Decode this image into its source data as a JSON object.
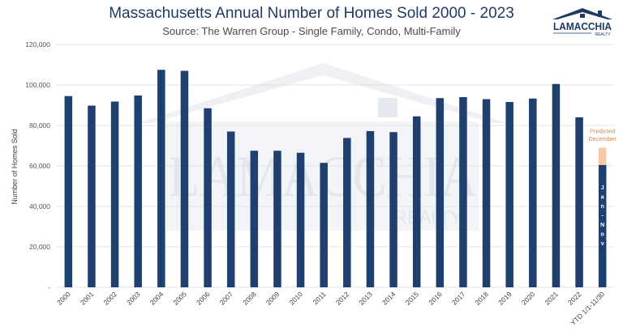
{
  "header": {
    "title": "Massachusetts Annual Number of Homes Sold 2000 - 2023",
    "subtitle": "Source: The Warren Group - Single Family, Condo, Multi-Family"
  },
  "logo": {
    "text": "LAMACCHIA",
    "subtext": "REALTY",
    "color": "#1f3b64"
  },
  "watermark": {
    "text": "LAMACCHIA",
    "subtext": "REALTY"
  },
  "chart_data": {
    "type": "bar",
    "title": "Massachusetts Annual Number of Homes Sold 2000 - 2023",
    "subtitle": "Source: The Warren Group - Single Family, Condo, Multi-Family",
    "ylabel": "Number of Homes Sold",
    "xlabel": "",
    "ylim": [
      0,
      120000
    ],
    "yticks": [
      {
        "value": 0,
        "label": "-"
      },
      {
        "value": 20000,
        "label": "20,000"
      },
      {
        "value": 40000,
        "label": "40,000"
      },
      {
        "value": 60000,
        "label": "60,000"
      },
      {
        "value": 80000,
        "label": "80,000"
      },
      {
        "value": 100000,
        "label": "100,000"
      },
      {
        "value": 120000,
        "label": "120,000"
      }
    ],
    "grid": true,
    "categories": [
      "2000",
      "2001",
      "2002",
      "2003",
      "2004",
      "2005",
      "2006",
      "2007",
      "2008",
      "2009",
      "2010",
      "2011",
      "2012",
      "2013",
      "2014",
      "2015",
      "2016",
      "2017",
      "2018",
      "2019",
      "2020",
      "2021",
      "2022",
      "YTD 1/1-11/30"
    ],
    "values": [
      94500,
      89800,
      91800,
      94800,
      107500,
      107000,
      88500,
      77000,
      67500,
      67500,
      66500,
      61500,
      73800,
      77200,
      76700,
      84500,
      93500,
      94000,
      93000,
      91600,
      93300,
      100500,
      84000,
      60500
    ],
    "bar_color": "#1f3f6e",
    "predicted": {
      "category": "YTD 1/1-11/30",
      "base": 60500,
      "value": 69000,
      "label": "Predicted December",
      "color": "#f6c8a6",
      "label_color": "#e0853a"
    },
    "bar_annotation": {
      "category": "YTD 1/1-11/30",
      "text": "Jan - Nov",
      "color": "#ffffff"
    }
  }
}
